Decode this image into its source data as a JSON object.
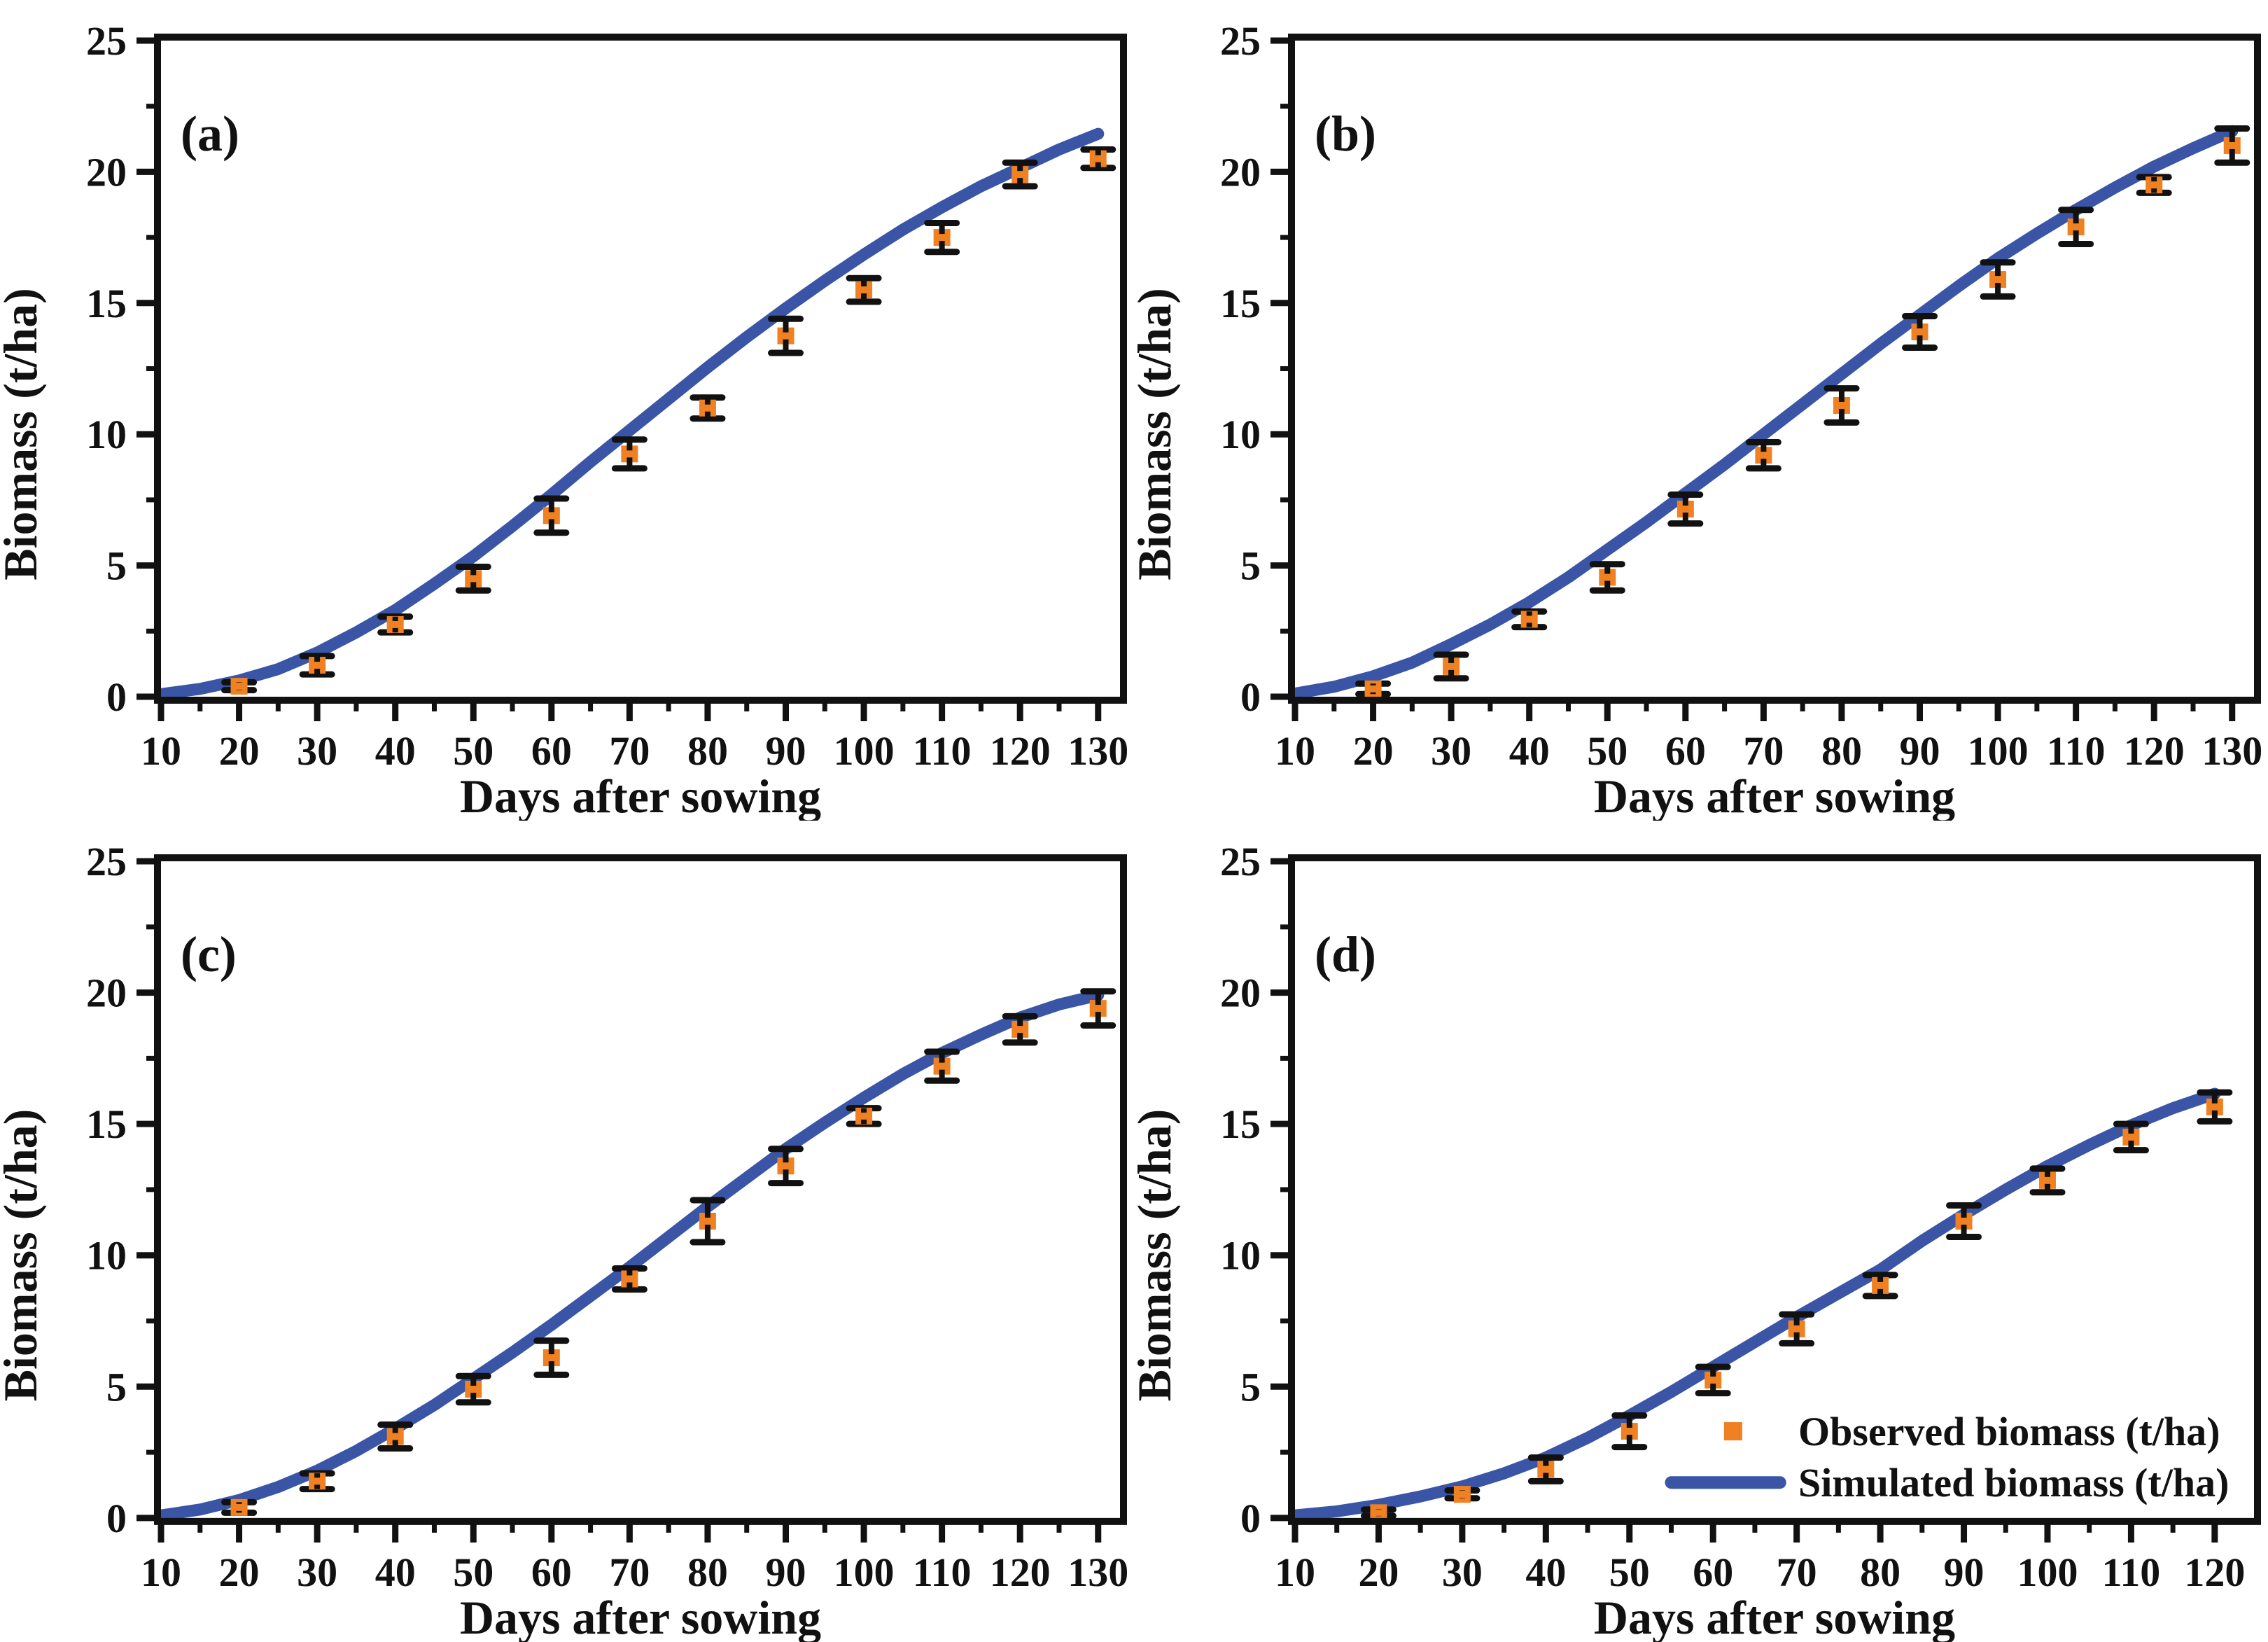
{
  "figure": {
    "background": "#ffffff",
    "colors": {
      "observed": "#F08122",
      "simulated": "#3A55A5",
      "axis": "#111111"
    },
    "x_label": "Days after sowing",
    "y_label": "Biomass (t/ha)",
    "legend": {
      "observed_label": "Observed biomass (t/ha)",
      "simulated_label": "Simulated biomass (t/ha)"
    }
  },
  "chart_data": [
    {
      "panel": "(a)",
      "type": "line+scatter",
      "title": "",
      "xlabel": "Days after sowing",
      "ylabel": "Biomass (t/ha)",
      "x_ticks": [
        10,
        20,
        30,
        40,
        50,
        60,
        70,
        80,
        90,
        100,
        110,
        120,
        130
      ],
      "y_ticks": [
        0,
        5,
        10,
        15,
        20,
        25
      ],
      "x_minor_step": 5,
      "y_minor_step": 2.5,
      "xlim": [
        10,
        132.8
      ],
      "ylim": [
        0,
        25
      ],
      "grid": false,
      "show_legend": false,
      "observed": {
        "x": [
          20,
          30,
          40,
          50,
          60,
          70,
          80,
          90,
          100,
          110,
          120,
          130
        ],
        "y": [
          0.4,
          1.2,
          2.75,
          4.5,
          6.9,
          9.25,
          11.0,
          13.75,
          15.5,
          17.5,
          19.9,
          20.5
        ],
        "yerr": [
          0.15,
          0.35,
          0.3,
          0.45,
          0.65,
          0.55,
          0.4,
          0.65,
          0.45,
          0.55,
          0.45,
          0.35
        ]
      },
      "simulated": {
        "x": [
          10,
          15,
          20,
          25,
          30,
          35,
          40,
          45,
          50,
          55,
          60,
          65,
          70,
          75,
          80,
          85,
          90,
          95,
          100,
          105,
          110,
          115,
          120,
          125,
          130
        ],
        "y": [
          0.1,
          0.3,
          0.62,
          1.05,
          1.68,
          2.45,
          3.3,
          4.3,
          5.35,
          6.5,
          7.7,
          8.95,
          10.15,
          11.35,
          12.55,
          13.7,
          14.8,
          15.85,
          16.85,
          17.8,
          18.65,
          19.45,
          20.15,
          20.85,
          21.45
        ]
      }
    },
    {
      "panel": "(b)",
      "type": "line+scatter",
      "title": "",
      "xlabel": "Days after sowing",
      "ylabel": "Biomass (t/ha)",
      "x_ticks": [
        10,
        20,
        30,
        40,
        50,
        60,
        70,
        80,
        90,
        100,
        110,
        120,
        130
      ],
      "y_ticks": [
        0,
        5,
        10,
        15,
        20,
        25
      ],
      "x_minor_step": 5,
      "y_minor_step": 2.5,
      "xlim": [
        10,
        132.8
      ],
      "ylim": [
        0,
        25
      ],
      "grid": false,
      "show_legend": false,
      "observed": {
        "x": [
          20,
          30,
          40,
          50,
          60,
          70,
          80,
          90,
          100,
          110,
          120,
          130
        ],
        "y": [
          0.3,
          1.15,
          2.95,
          4.55,
          7.15,
          9.2,
          11.1,
          13.9,
          15.9,
          17.9,
          19.5,
          21.0
        ],
        "yerr": [
          0.2,
          0.45,
          0.3,
          0.5,
          0.55,
          0.5,
          0.65,
          0.6,
          0.65,
          0.65,
          0.3,
          0.65
        ]
      },
      "simulated": {
        "x": [
          10,
          15,
          20,
          25,
          30,
          35,
          40,
          45,
          50,
          55,
          60,
          65,
          70,
          75,
          80,
          85,
          90,
          95,
          100,
          105,
          110,
          115,
          120,
          125,
          130
        ],
        "y": [
          0.12,
          0.38,
          0.78,
          1.3,
          2.0,
          2.75,
          3.6,
          4.55,
          5.6,
          6.65,
          7.75,
          8.85,
          10.0,
          11.15,
          12.3,
          13.45,
          14.55,
          15.65,
          16.7,
          17.65,
          18.55,
          19.4,
          20.2,
          20.9,
          21.55
        ]
      }
    },
    {
      "panel": "(c)",
      "type": "line+scatter",
      "title": "",
      "xlabel": "Days after sowing",
      "ylabel": "Biomass (t/ha)",
      "x_ticks": [
        10,
        20,
        30,
        40,
        50,
        60,
        70,
        80,
        90,
        100,
        110,
        120,
        130
      ],
      "y_ticks": [
        0,
        5,
        10,
        15,
        20,
        25
      ],
      "x_minor_step": 5,
      "y_minor_step": 2.5,
      "xlim": [
        10,
        132.8
      ],
      "ylim": [
        0,
        25
      ],
      "grid": false,
      "show_legend": false,
      "observed": {
        "x": [
          20,
          30,
          40,
          50,
          60,
          70,
          80,
          90,
          100,
          110,
          120,
          130
        ],
        "y": [
          0.4,
          1.4,
          3.1,
          4.9,
          6.1,
          9.1,
          11.3,
          13.4,
          15.3,
          17.2,
          18.6,
          19.4
        ],
        "yerr": [
          0.2,
          0.3,
          0.45,
          0.5,
          0.65,
          0.4,
          0.8,
          0.65,
          0.3,
          0.55,
          0.5,
          0.65
        ]
      },
      "simulated": {
        "x": [
          10,
          15,
          20,
          25,
          30,
          35,
          40,
          45,
          50,
          55,
          60,
          65,
          70,
          75,
          80,
          85,
          90,
          95,
          100,
          105,
          110,
          115,
          120,
          125,
          130
        ],
        "y": [
          0.1,
          0.32,
          0.68,
          1.18,
          1.8,
          2.55,
          3.4,
          4.3,
          5.3,
          6.3,
          7.35,
          8.45,
          9.55,
          10.7,
          11.85,
          12.95,
          14.05,
          15.05,
          16.0,
          16.9,
          17.7,
          18.4,
          19.05,
          19.55,
          19.9
        ]
      }
    },
    {
      "panel": "(d)",
      "type": "line+scatter",
      "title": "",
      "xlabel": "Days after sowing",
      "ylabel": "Biomass (t/ha)",
      "x_ticks": [
        10,
        20,
        30,
        40,
        50,
        60,
        70,
        80,
        90,
        100,
        110,
        120
      ],
      "y_ticks": [
        0,
        5,
        10,
        15,
        20,
        25
      ],
      "x_minor_step": 5,
      "y_minor_step": 2.5,
      "xlim": [
        10,
        124.7
      ],
      "ylim": [
        0,
        25
      ],
      "grid": false,
      "show_legend": true,
      "legend_pos": {
        "marker_day": 62.4,
        "row1_value": 3.3,
        "line_day_start": 55,
        "line_day_end": 68,
        "row2_value": 1.35,
        "text_day": 70.2
      },
      "observed": {
        "x": [
          20,
          30,
          40,
          50,
          60,
          70,
          80,
          90,
          100,
          110,
          120
        ],
        "y": [
          0.2,
          0.9,
          1.85,
          3.3,
          5.25,
          7.2,
          8.85,
          11.3,
          12.85,
          14.5,
          15.65
        ],
        "yerr": [
          0.12,
          0.15,
          0.45,
          0.6,
          0.5,
          0.55,
          0.4,
          0.6,
          0.45,
          0.5,
          0.55
        ]
      },
      "simulated": {
        "x": [
          10,
          15,
          20,
          25,
          30,
          35,
          40,
          45,
          50,
          55,
          60,
          65,
          70,
          75,
          80,
          85,
          90,
          95,
          100,
          105,
          110,
          115,
          120
        ],
        "y": [
          0.1,
          0.25,
          0.5,
          0.82,
          1.2,
          1.7,
          2.3,
          3.05,
          3.9,
          4.8,
          5.75,
          6.7,
          7.65,
          8.55,
          9.45,
          10.55,
          11.55,
          12.5,
          13.4,
          14.2,
          14.95,
          15.6,
          16.15
        ]
      }
    }
  ]
}
